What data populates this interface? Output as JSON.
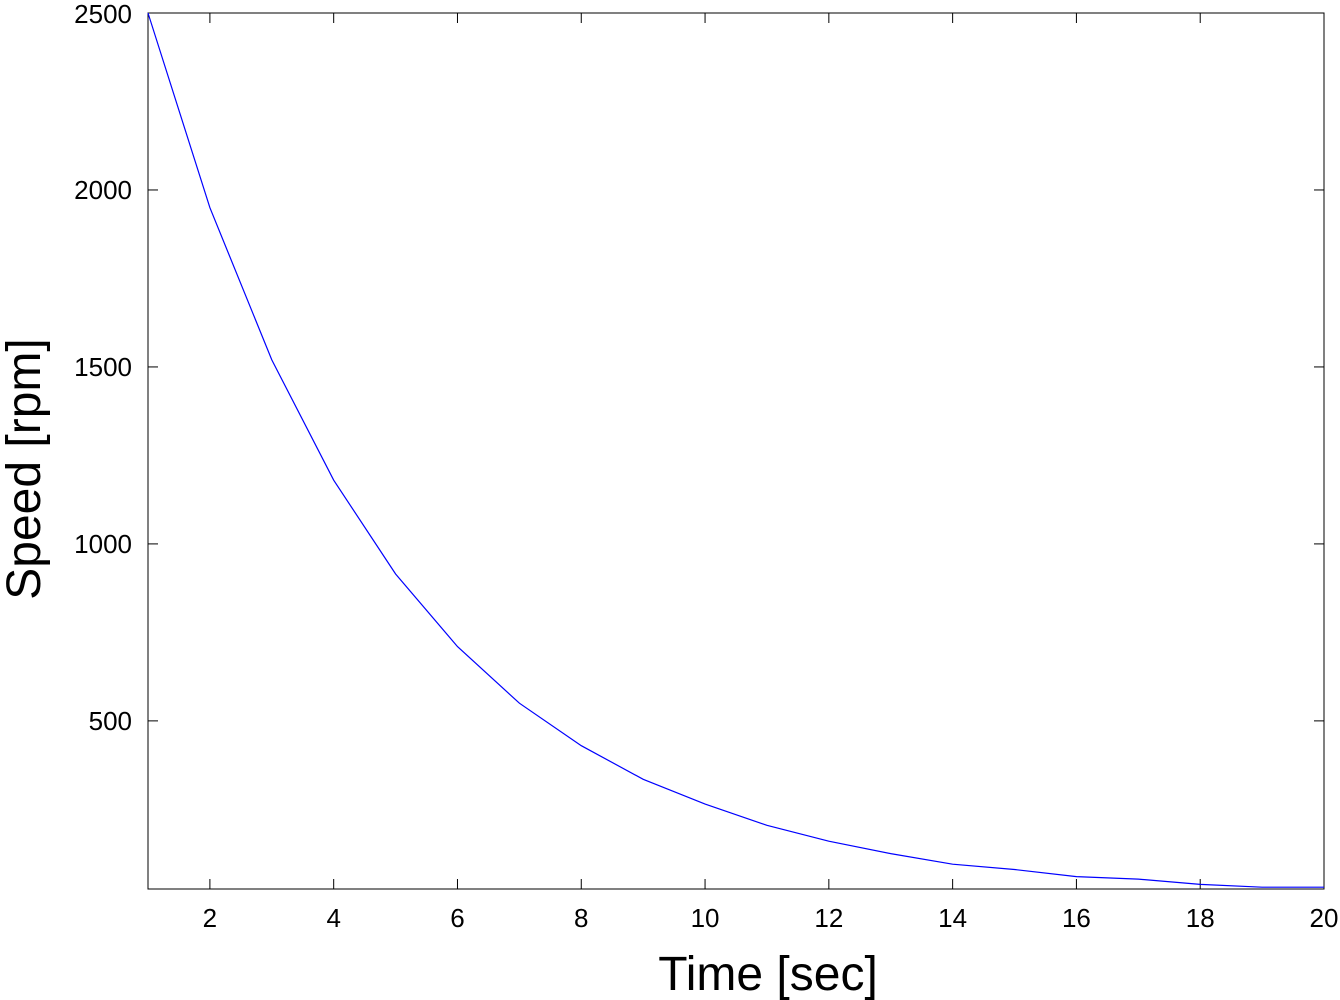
{
  "chart_data": {
    "type": "line",
    "title": "",
    "xlabel": "Time [sec]",
    "ylabel": "Speed [rpm]",
    "xlim": [
      1,
      20
    ],
    "ylim": [
      25,
      2500
    ],
    "xticks": [
      2,
      4,
      6,
      8,
      10,
      12,
      14,
      16,
      18,
      20
    ],
    "yticks": [
      500,
      1000,
      1500,
      2000,
      2500
    ],
    "grid": false,
    "legend": "none",
    "series": [
      {
        "color": "#0000ff",
        "x": [
          1,
          2,
          3,
          4,
          5,
          6,
          7,
          8,
          9,
          10,
          11,
          12,
          13,
          14,
          15,
          16,
          17,
          18,
          19,
          20
        ],
        "y": [
          2500,
          1950,
          1520,
          1180,
          915,
          710,
          550,
          430,
          335,
          265,
          205,
          160,
          125,
          95,
          80,
          60,
          53,
          38,
          30,
          30
        ]
      }
    ]
  }
}
